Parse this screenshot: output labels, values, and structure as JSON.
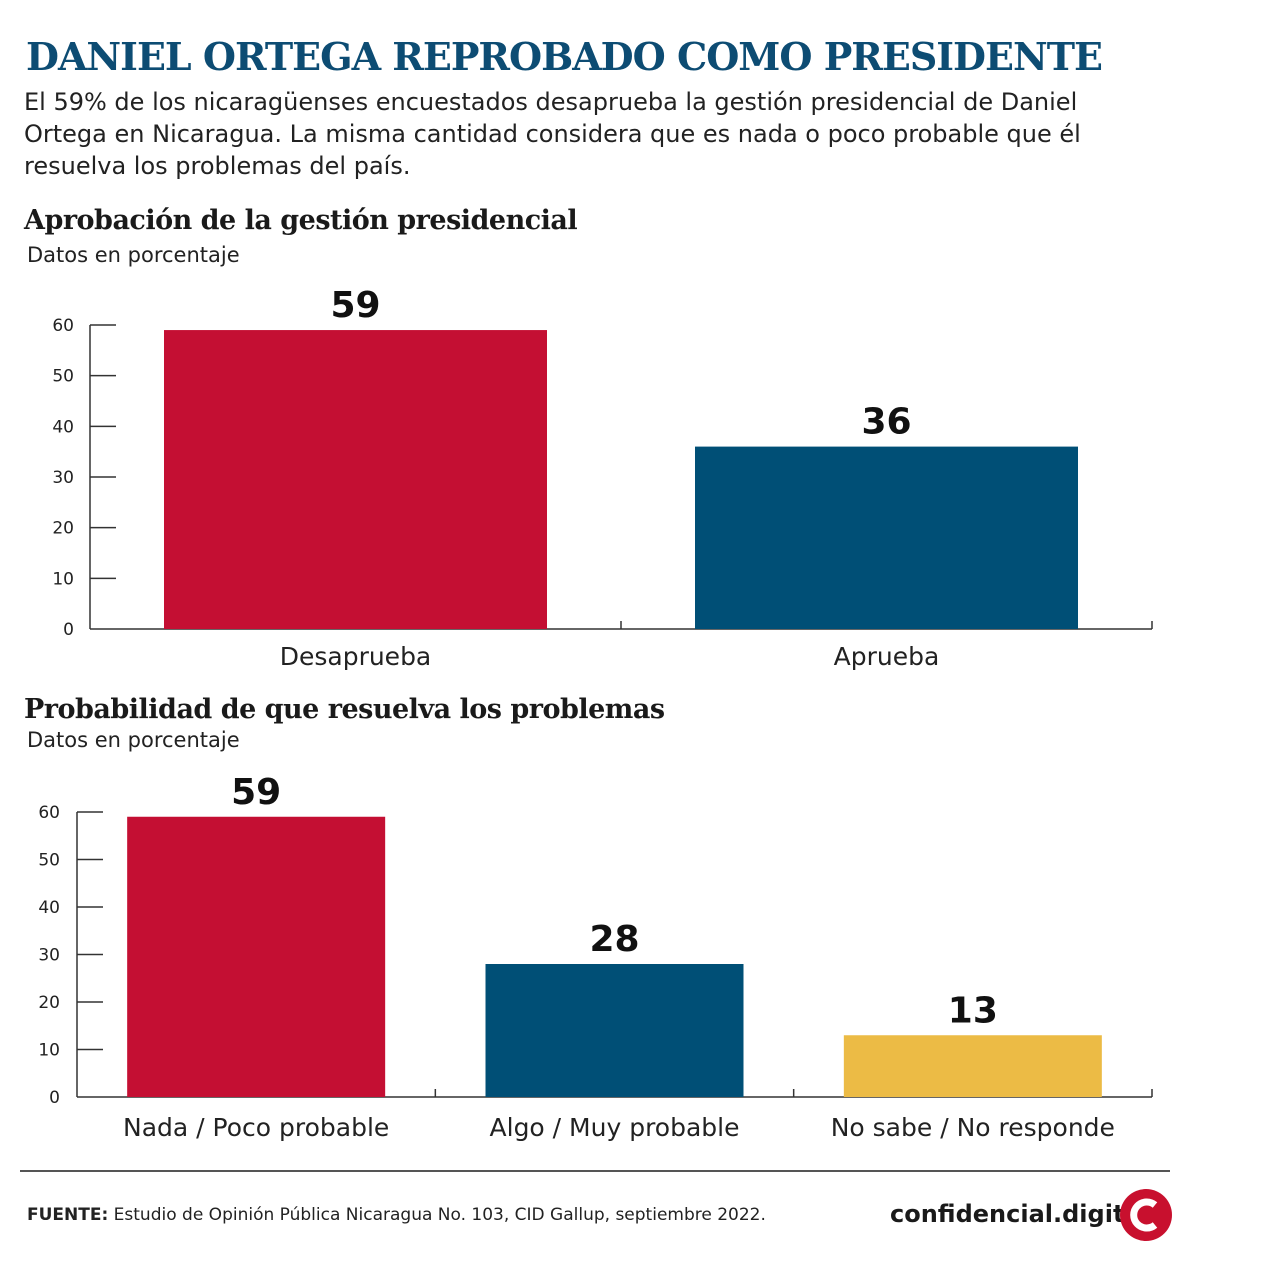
{
  "header": {
    "title": "DANIEL ORTEGA REPROBADO COMO PRESIDENTE",
    "subtitle": "El 59% de los nicaragüenses encuestados desaprueba la gestión presidencial de Daniel Ortega en Nicaragua. La misma cantidad considera que es nada o poco probable que él resuelva los problemas del país."
  },
  "footer": {
    "source_label": "FUENTE:",
    "source_text": "Estudio de Opinión Pública Nicaragua No. 103, CID Gallup, septiembre 2022.",
    "brand": "confidencial.digital",
    "logo_icon": "confidencial-c-logo-icon"
  },
  "chart_data": [
    {
      "type": "bar",
      "title": "Aprobación de la gestión presidencial",
      "ylabel": "Datos en porcentaje",
      "categories": [
        "Desaprueba",
        "Aprueba"
      ],
      "values": [
        59,
        36
      ],
      "colors": [
        "#c40f33",
        "#004f76"
      ],
      "ylim": [
        0,
        60
      ],
      "yticks": [
        0,
        10,
        20,
        30,
        40,
        50,
        60
      ],
      "grid": false
    },
    {
      "type": "bar",
      "title": "Probabilidad de que resuelva los problemas",
      "ylabel": "Datos en porcentaje",
      "categories": [
        "Nada / Poco probable",
        "Algo / Muy probable",
        "No sabe / No responde"
      ],
      "values": [
        59,
        28,
        13
      ],
      "colors": [
        "#c40f33",
        "#004f76",
        "#ecbb45"
      ],
      "ylim": [
        0,
        60
      ],
      "yticks": [
        0,
        10,
        20,
        30,
        40,
        50,
        60
      ],
      "grid": false
    }
  ]
}
